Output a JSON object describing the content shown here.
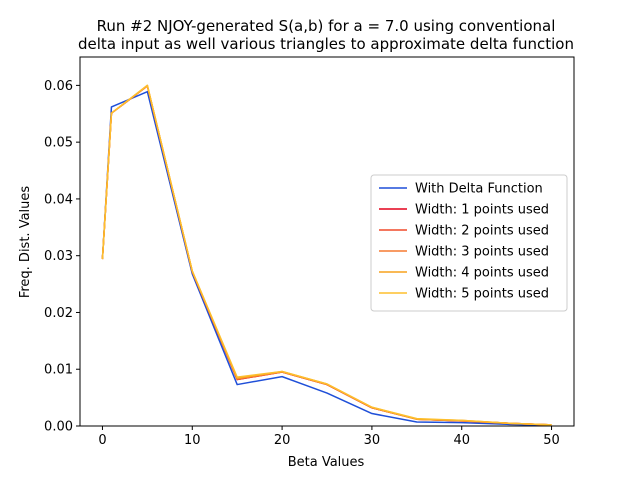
{
  "chart_data": {
    "type": "line",
    "title": [
      "Run #2 NJOY-generated S(a,b) for a = 7.0 using conventional",
      "delta input as well various triangles to approximate delta function"
    ],
    "xlabel": "Beta Values",
    "ylabel": "Freq. Dist. Values",
    "xlim": [
      -2.5,
      52.5
    ],
    "ylim": [
      0.0,
      0.065
    ],
    "xticks": [
      0,
      10,
      20,
      30,
      40,
      50
    ],
    "xtick_labels": [
      "0",
      "10",
      "20",
      "30",
      "40",
      "50"
    ],
    "yticks": [
      0.0,
      0.01,
      0.02,
      0.03,
      0.04,
      0.05,
      0.06
    ],
    "ytick_labels": [
      "0.00",
      "0.01",
      "0.02",
      "0.03",
      "0.04",
      "0.05",
      "0.06"
    ],
    "grid": false,
    "legend_position": "center-right",
    "x": [
      0,
      1,
      5,
      10,
      15,
      20,
      25,
      30,
      35,
      40,
      45,
      50
    ],
    "series": [
      {
        "name": "With Delta Function",
        "color": "#1f4fd8",
        "values": [
          0.0295,
          0.0562,
          0.0589,
          0.0268,
          0.0073,
          0.0087,
          0.0058,
          0.0022,
          0.0007,
          0.0006,
          0.0003,
          0.0001
        ]
      },
      {
        "name": "Width: 1 points used",
        "color": "#e3001b",
        "values": [
          0.0294,
          0.0551,
          0.0599,
          0.0272,
          0.0082,
          0.0095,
          0.0073,
          0.0032,
          0.0012,
          0.0009,
          0.0005,
          0.0002
        ]
      },
      {
        "name": "Width: 2 points used",
        "color": "#f04a2a",
        "values": [
          0.0294,
          0.0551,
          0.0599,
          0.0272,
          0.0082,
          0.0095,
          0.0073,
          0.0032,
          0.0012,
          0.0009,
          0.0005,
          0.0002
        ]
      },
      {
        "name": "Width: 3 points used",
        "color": "#f67a30",
        "values": [
          0.0294,
          0.0551,
          0.0599,
          0.0272,
          0.0083,
          0.0095,
          0.0073,
          0.0032,
          0.0012,
          0.0009,
          0.0005,
          0.0002
        ]
      },
      {
        "name": "Width: 4 points used",
        "color": "#f7a21d",
        "values": [
          0.0294,
          0.0551,
          0.06,
          0.0273,
          0.0084,
          0.0096,
          0.0074,
          0.0033,
          0.0012,
          0.001,
          0.0005,
          0.0002
        ]
      },
      {
        "name": "Width: 5 points used",
        "color": "#fdbf2d",
        "values": [
          0.0294,
          0.0551,
          0.06,
          0.0273,
          0.0086,
          0.0096,
          0.0074,
          0.0033,
          0.0013,
          0.001,
          0.0005,
          0.0002
        ]
      }
    ]
  }
}
